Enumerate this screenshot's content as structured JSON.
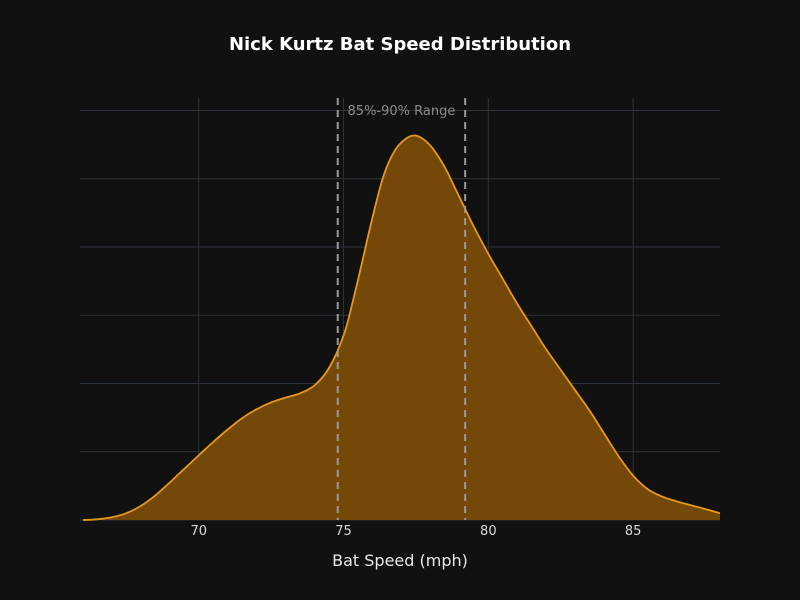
{
  "chart_data": {
    "type": "area",
    "title": "Nick Kurtz Bat Speed Distribution",
    "xlabel": "Bat Speed (mph)",
    "ylabel": "",
    "xlim": [
      65.9,
      88
    ],
    "ylim": [
      0,
      0.182
    ],
    "xticks": [
      70,
      75,
      80,
      85
    ],
    "yticks": [
      0,
      0.03,
      0.06,
      0.09,
      0.12,
      0.15,
      0.18
    ],
    "grid": true,
    "series": [
      {
        "x": [
          66,
          66.5,
          67,
          67.5,
          68,
          68.5,
          69,
          69.5,
          70,
          70.5,
          71,
          71.5,
          72,
          72.5,
          73,
          73.5,
          74,
          74.5,
          75,
          75.3,
          75.6,
          76,
          76.4,
          76.8,
          77.2,
          77.5,
          77.8,
          78.1,
          78.5,
          79,
          79.5,
          80,
          80.5,
          81,
          81.5,
          82,
          82.5,
          83,
          83.5,
          84,
          84.5,
          85,
          85.5,
          86,
          86.5,
          87,
          87.5,
          88
        ],
        "y": [
          0.0,
          0.0003,
          0.0012,
          0.003,
          0.0062,
          0.0108,
          0.0165,
          0.0225,
          0.0284,
          0.0343,
          0.0398,
          0.0448,
          0.0487,
          0.0517,
          0.0538,
          0.0557,
          0.0592,
          0.0668,
          0.081,
          0.095,
          0.111,
          0.133,
          0.152,
          0.163,
          0.168,
          0.169,
          0.167,
          0.163,
          0.155,
          0.142,
          0.129,
          0.117,
          0.106,
          0.095,
          0.085,
          0.075,
          0.066,
          0.057,
          0.048,
          0.038,
          0.028,
          0.0195,
          0.0136,
          0.0103,
          0.0082,
          0.0065,
          0.0048,
          0.003
        ]
      }
    ],
    "range_band": {
      "label": "85%-90% Range",
      "x_start": 74.8,
      "x_end": 79.2
    },
    "colors": {
      "background": "#111111",
      "fill": "#744808",
      "line": "#e6981e",
      "grid": "#2c333b",
      "range_line": "#9a9a9a"
    }
  }
}
